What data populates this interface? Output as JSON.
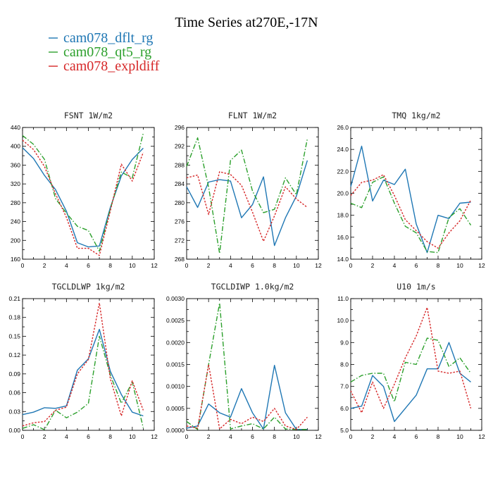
{
  "figure": {
    "title": "Time Series at270E,-17N",
    "legend": [
      {
        "name": "cam078_dflt_rg",
        "color": "#1f77b4",
        "dash": "solid"
      },
      {
        "name": "cam078_qt5_rg",
        "color": "#2ca02c",
        "dash": "dashdot"
      },
      {
        "name": "cam078_expldiff",
        "color": "#d62728",
        "dash": "dotted"
      }
    ]
  },
  "chart_data": [
    {
      "type": "line",
      "title": "FSNT  1W/m2",
      "x": [
        0,
        1,
        2,
        3,
        4,
        5,
        6,
        7,
        8,
        9,
        10,
        11
      ],
      "xlim": [
        0,
        12
      ],
      "xticks": [
        "0",
        "2",
        "4",
        "6",
        "8",
        "10",
        "12"
      ],
      "ylim": [
        160,
        440
      ],
      "yticks": [
        "160",
        "200",
        "240",
        "280",
        "320",
        "360",
        "400",
        "440"
      ],
      "series": [
        {
          "name": "cam078_dflt_rg",
          "values": [
            397,
            374,
            338,
            308,
            262,
            195,
            186,
            188,
            270,
            337,
            372,
            396
          ]
        },
        {
          "name": "cam078_qt5_rg",
          "values": [
            423,
            404,
            372,
            289,
            258,
            230,
            221,
            177,
            267,
            345,
            333,
            428
          ]
        },
        {
          "name": "cam078_expldiff",
          "values": [
            413,
            393,
            357,
            299,
            249,
            183,
            183,
            168,
            263,
            362,
            326,
            387
          ]
        }
      ]
    },
    {
      "type": "line",
      "title": "FLNT  1W/m2",
      "x": [
        0,
        1,
        2,
        3,
        4,
        5,
        6,
        7,
        8,
        9,
        10,
        11
      ],
      "xlim": [
        0,
        12
      ],
      "xticks": [
        "0",
        "2",
        "4",
        "6",
        "8",
        "10",
        "12"
      ],
      "ylim": [
        268,
        296
      ],
      "yticks": [
        "268",
        "272",
        "276",
        "280",
        "284",
        "288",
        "292",
        "296"
      ],
      "series": [
        {
          "name": "cam078_dflt_rg",
          "values": [
            283.4,
            279.0,
            284.4,
            284.9,
            284.6,
            276.8,
            279.6,
            285.5,
            270.9,
            276.8,
            281.4,
            289.0
          ]
        },
        {
          "name": "cam078_qt5_rg",
          "values": [
            287.7,
            293.8,
            283.3,
            269.2,
            289.0,
            291.2,
            282.5,
            277.9,
            278.6,
            285.3,
            281.7,
            293.6
          ]
        },
        {
          "name": "cam078_expldiff",
          "values": [
            285.3,
            285.9,
            277.5,
            286.6,
            286.0,
            283.7,
            278.0,
            271.8,
            277.2,
            283.4,
            280.8,
            279.0
          ]
        }
      ]
    },
    {
      "type": "line",
      "title": "TMQ  1kg/m2",
      "x": [
        0,
        1,
        2,
        3,
        4,
        5,
        6,
        7,
        8,
        9,
        10,
        11
      ],
      "xlim": [
        0,
        12
      ],
      "xticks": [
        "0",
        "2",
        "4",
        "6",
        "8",
        "10",
        "12"
      ],
      "ylim": [
        14.0,
        26.0
      ],
      "yticks": [
        "14.0",
        "16.0",
        "18.0",
        "20.0",
        "22.0",
        "24.0",
        "26.0"
      ],
      "series": [
        {
          "name": "cam078_dflt_rg",
          "values": [
            20.6,
            24.3,
            19.3,
            21.2,
            20.8,
            22.2,
            17.2,
            14.6,
            18.0,
            17.7,
            19.1,
            19.2
          ]
        },
        {
          "name": "cam078_qt5_rg",
          "values": [
            19.1,
            18.7,
            21.0,
            21.5,
            19.1,
            17.0,
            16.4,
            14.7,
            14.6,
            17.8,
            18.6,
            17.1
          ]
        },
        {
          "name": "cam078_expldiff",
          "values": [
            19.8,
            21.0,
            21.2,
            21.7,
            19.8,
            17.6,
            16.6,
            15.6,
            15.0,
            16.4,
            17.5,
            19.4
          ]
        }
      ]
    },
    {
      "type": "line",
      "title": "TGCLDLWP  1kg/m2",
      "x": [
        0,
        1,
        2,
        3,
        4,
        5,
        6,
        7,
        8,
        9,
        10,
        11
      ],
      "xlim": [
        0,
        12
      ],
      "xticks": [
        "0",
        "2",
        "4",
        "6",
        "8",
        "10",
        "12"
      ],
      "ylim": [
        0.0,
        0.21
      ],
      "yticks": [
        "0.00",
        "0.03",
        "0.06",
        "0.09",
        "0.12",
        "0.15",
        "0.18",
        "0.21"
      ],
      "series": [
        {
          "name": "cam078_dflt_rg",
          "values": [
            0.025,
            0.029,
            0.036,
            0.035,
            0.039,
            0.096,
            0.114,
            0.161,
            0.094,
            0.057,
            0.029,
            0.023
          ]
        },
        {
          "name": "cam078_qt5_rg",
          "values": [
            0.003,
            0.009,
            0.001,
            0.032,
            0.02,
            0.029,
            0.043,
            0.15,
            0.088,
            0.043,
            0.077,
            0.004
          ]
        },
        {
          "name": "cam078_expldiff",
          "values": [
            0.007,
            0.012,
            0.014,
            0.032,
            0.037,
            0.09,
            0.113,
            0.203,
            0.082,
            0.023,
            0.079,
            0.032
          ]
        }
      ]
    },
    {
      "type": "line",
      "title": "TGCLDIWP  1.0kg/m2",
      "x": [
        0,
        1,
        2,
        3,
        4,
        5,
        6,
        7,
        8,
        9,
        10,
        11
      ],
      "xlim": [
        0,
        12
      ],
      "xticks": [
        "0",
        "2",
        "4",
        "6",
        "8",
        "10",
        "12"
      ],
      "ylim": [
        0.0,
        0.003
      ],
      "yticks": [
        "0.0000",
        "0.0005",
        "0.0010",
        "0.0015",
        "0.0020",
        "0.0025",
        "0.0030"
      ],
      "series": [
        {
          "name": "cam078_dflt_rg",
          "values": [
            5e-05,
            0.0001,
            0.0006,
            0.0004,
            0.0003,
            0.00095,
            0.0004,
            3e-05,
            0.00148,
            0.0004,
            2e-05,
            2e-05
          ]
        },
        {
          "name": "cam078_qt5_rg",
          "values": [
            0.0002,
            2e-05,
            0.0015,
            0.0029,
            3e-05,
            0.0001,
            0.00015,
            3e-05,
            0.0003,
            3e-05,
            2e-05,
            2e-05
          ]
        },
        {
          "name": "cam078_expldiff",
          "values": [
            0.0001,
            5e-05,
            0.0015,
            3e-05,
            0.00025,
            0.00015,
            0.0003,
            0.0002,
            0.0005,
            0.0001,
            2e-05,
            0.0003
          ]
        }
      ]
    },
    {
      "type": "line",
      "title": "U10  1m/s",
      "x": [
        0,
        1,
        2,
        3,
        4,
        5,
        6,
        7,
        8,
        9,
        10,
        11
      ],
      "xlim": [
        0,
        12
      ],
      "xticks": [
        "0",
        "2",
        "4",
        "6",
        "8",
        "10",
        "12"
      ],
      "ylim": [
        5.0,
        11.0
      ],
      "yticks": [
        "5.0",
        "6.0",
        "7.0",
        "8.0",
        "9.0",
        "10.0",
        "11.0"
      ],
      "series": [
        {
          "name": "cam078_dflt_rg",
          "values": [
            6.0,
            6.1,
            7.5,
            7.0,
            5.4,
            6.0,
            6.6,
            7.8,
            7.8,
            9.0,
            7.6,
            7.2
          ]
        },
        {
          "name": "cam078_qt5_rg",
          "values": [
            7.2,
            7.5,
            7.6,
            7.6,
            6.3,
            8.1,
            8.0,
            9.2,
            9.1,
            7.9,
            8.3,
            7.6
          ]
        },
        {
          "name": "cam078_expldiff",
          "values": [
            6.8,
            5.8,
            7.2,
            6.0,
            7.1,
            8.3,
            9.3,
            10.6,
            7.7,
            7.6,
            7.7,
            6.0
          ]
        }
      ]
    }
  ]
}
